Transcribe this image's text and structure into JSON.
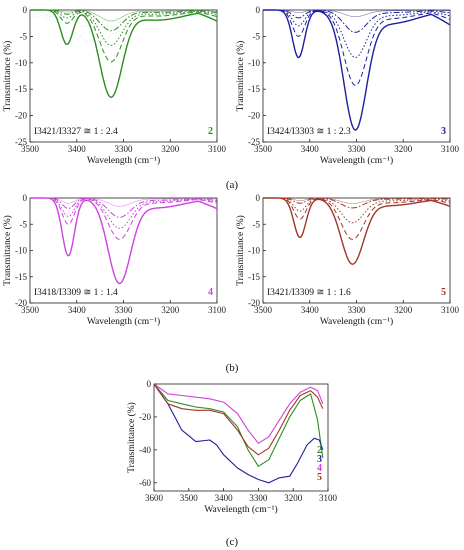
{
  "panel_labels": [
    "(a)",
    "(b)",
    "(c)"
  ],
  "chart_data": [
    {
      "type": "line",
      "panel": "(a)",
      "sample": "2",
      "color": "#2e8b22",
      "faint_color": "#8fd8e8",
      "annotation": "I3421/I3327 ≅ 1 : 2.4",
      "xlabel": "Wavelength (cm⁻¹)",
      "ylabel": "Transmittance (%)",
      "xlim": [
        3500,
        3100
      ],
      "ylim": [
        -25,
        0
      ],
      "xticks": [
        "3500",
        "3400",
        "3300",
        "3200",
        "3100"
      ],
      "yticks": [
        "0",
        "-5",
        "-10",
        "-15",
        "-20",
        "-25"
      ],
      "peaks": [
        3421,
        3327
      ],
      "series": [
        {
          "style": "solid",
          "depths": [
            6.5,
            16.0
          ]
        },
        {
          "style": "dash",
          "depths": [
            2.5,
            9.5
          ]
        },
        {
          "style": "dot",
          "depths": [
            1.5,
            6.5
          ]
        },
        {
          "style": "dashdot",
          "depths": [
            0.8,
            3.8
          ]
        },
        {
          "style": "thin",
          "depths": [
            0.4,
            2.0
          ]
        }
      ]
    },
    {
      "type": "line",
      "panel": "(a)",
      "sample": "3",
      "color": "#1f1f9e",
      "annotation": "I3424/I3303 ≅ 1 : 2.3",
      "xlabel": "Wavelength (cm⁻¹)",
      "ylabel": "Transmittance (%)",
      "xlim": [
        3500,
        3100
      ],
      "ylim": [
        -25,
        0
      ],
      "xticks": [
        "3500",
        "3400",
        "3300",
        "3200",
        "3100"
      ],
      "yticks": [
        "0",
        "-5",
        "-10",
        "-15",
        "-20",
        "-25"
      ],
      "peaks": [
        3424,
        3303
      ],
      "series": [
        {
          "style": "solid",
          "depths": [
            9.0,
            21.5
          ]
        },
        {
          "style": "dash",
          "depths": [
            5.0,
            13.5
          ]
        },
        {
          "style": "dot",
          "depths": [
            3.0,
            8.5
          ]
        },
        {
          "style": "dashdot",
          "depths": [
            1.5,
            4.0
          ]
        },
        {
          "style": "thin",
          "depths": [
            0.5,
            1.2
          ]
        }
      ]
    },
    {
      "type": "line",
      "panel": "(b)",
      "sample": "4",
      "color": "#cc44dd",
      "annotation": "I3418/I3309 ≅ 1 : 1.4",
      "xlabel": "Wavelength (cm⁻¹)",
      "ylabel": "Transmittance (%)",
      "xlim": [
        3500,
        3100
      ],
      "ylim": [
        -20,
        0
      ],
      "xticks": [
        "3500",
        "3400",
        "3300",
        "3200",
        "3100"
      ],
      "yticks": [
        "0",
        "-5",
        "-10",
        "-15",
        "-20"
      ],
      "peaks": [
        3418,
        3309
      ],
      "series": [
        {
          "style": "solid",
          "depths": [
            11.0,
            15.5
          ]
        },
        {
          "style": "dash",
          "depths": [
            5.0,
            7.5
          ]
        },
        {
          "style": "dot",
          "depths": [
            3.5,
            5.5
          ]
        },
        {
          "style": "dashdot",
          "depths": [
            2.0,
            3.5
          ]
        },
        {
          "style": "thin",
          "depths": [
            1.0,
            1.5
          ]
        }
      ]
    },
    {
      "type": "line",
      "panel": "(b)",
      "sample": "5",
      "color": "#a0362a",
      "annotation": "I3421/I3309 ≅ 1 : 1.6",
      "xlabel": "Wavelength (cm⁻¹)",
      "ylabel": "Transmittance (%)",
      "xlim": [
        3500,
        3100
      ],
      "ylim": [
        -20,
        0
      ],
      "xticks": [
        "3500",
        "3400",
        "3300",
        "3200",
        "3100"
      ],
      "yticks": [
        "0",
        "-5",
        "-10",
        "-15",
        "-20"
      ],
      "peaks": [
        3421,
        3309
      ],
      "series": [
        {
          "style": "solid",
          "depths": [
            7.5,
            12.0
          ]
        },
        {
          "style": "dash",
          "depths": [
            4.0,
            7.5
          ]
        },
        {
          "style": "dot",
          "depths": [
            2.5,
            4.5
          ]
        },
        {
          "style": "dashdot",
          "depths": [
            1.0,
            1.8
          ]
        },
        {
          "style": "thin",
          "depths": [
            0.5,
            1.0
          ]
        }
      ]
    },
    {
      "type": "line",
      "panel": "(c)",
      "xlabel": "Wavelength (cm⁻¹)",
      "ylabel": "Transmittance (%)",
      "xlim": [
        3600,
        3100
      ],
      "ylim": [
        -65,
        0
      ],
      "xticks": [
        "3600",
        "3500",
        "3400",
        "3300",
        "3200",
        "3100"
      ],
      "yticks": [
        "0",
        "-20",
        "-40",
        "-60"
      ],
      "series": [
        {
          "name": "2",
          "color": "#2e8b22",
          "x": [
            3600,
            3560,
            3520,
            3480,
            3440,
            3400,
            3360,
            3330,
            3300,
            3270,
            3240,
            3210,
            3180,
            3150,
            3130,
            3115
          ],
          "y": [
            0,
            -10,
            -12,
            -14,
            -15,
            -17,
            -26,
            -40,
            -50,
            -46,
            -33,
            -20,
            -10,
            -6,
            -22,
            -45
          ]
        },
        {
          "name": "3",
          "color": "#1f1f9e",
          "x": [
            3600,
            3560,
            3520,
            3480,
            3440,
            3420,
            3400,
            3360,
            3330,
            3300,
            3270,
            3240,
            3210,
            3190,
            3160,
            3140,
            3125,
            3115
          ],
          "y": [
            0,
            -12,
            -28,
            -35,
            -34,
            -37,
            -43,
            -51,
            -55,
            -58,
            -60,
            -57,
            -56,
            -49,
            -37,
            -33,
            -34,
            -40
          ]
        },
        {
          "name": "4",
          "color": "#cc44dd",
          "x": [
            3600,
            3560,
            3520,
            3480,
            3440,
            3400,
            3360,
            3330,
            3300,
            3270,
            3240,
            3210,
            3180,
            3150,
            3130,
            3115
          ],
          "y": [
            0,
            -6,
            -7,
            -8,
            -9,
            -11,
            -18,
            -28,
            -36,
            -32,
            -22,
            -12,
            -5,
            -2,
            -4,
            -12
          ]
        },
        {
          "name": "5",
          "color": "#a0362a",
          "x": [
            3600,
            3560,
            3520,
            3480,
            3440,
            3400,
            3360,
            3330,
            3300,
            3270,
            3240,
            3210,
            3180,
            3150,
            3130,
            3115
          ],
          "y": [
            0,
            -12,
            -15,
            -16,
            -16,
            -18,
            -28,
            -38,
            -43,
            -39,
            -28,
            -16,
            -7,
            -4,
            -8,
            -15
          ]
        }
      ]
    }
  ]
}
